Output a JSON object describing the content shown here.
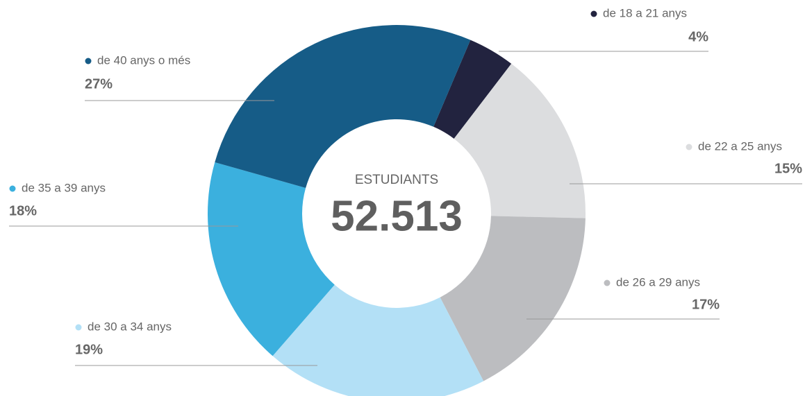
{
  "chart_data": {
    "type": "donut",
    "center_title": "ESTUDIANTS",
    "center_value": "52.513",
    "categories": [
      "de 18 a 21 anys",
      "de 22 a 25 anys",
      "de 26 a 29 anys",
      "de 30 a 34 anys",
      "de 35 a 39 anys",
      "de 40 anys o més"
    ],
    "values": [
      4,
      15,
      17,
      19,
      18,
      27
    ],
    "value_labels": [
      "4%",
      "15%",
      "17%",
      "19%",
      "18%",
      "27%"
    ],
    "colors": [
      "#22233f",
      "#dcdddf",
      "#bcbdc0",
      "#b3e0f6",
      "#3bb0de",
      "#165c87"
    ]
  }
}
